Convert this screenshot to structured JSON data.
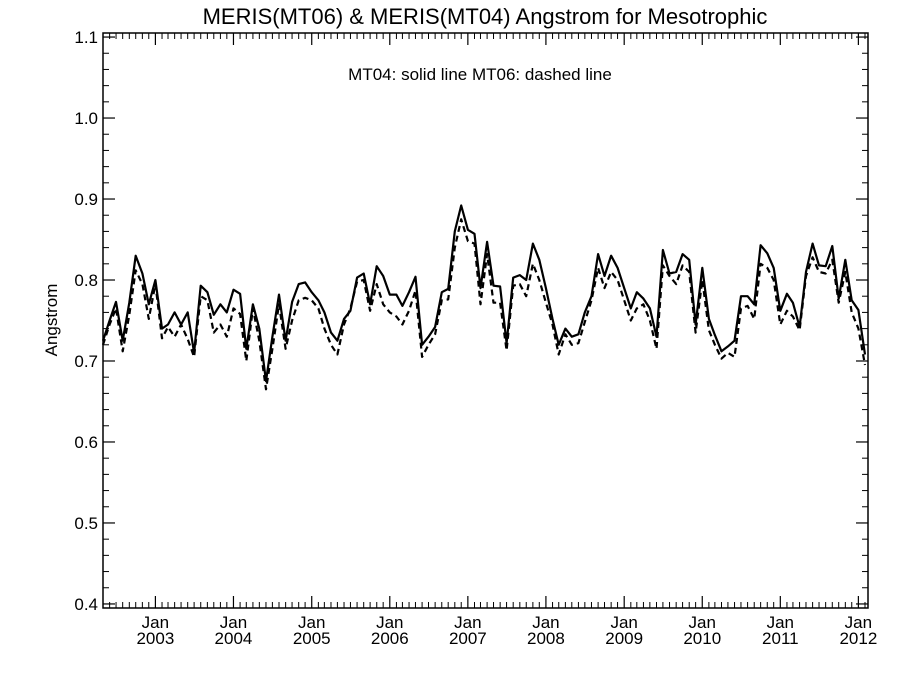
{
  "chart_data": {
    "type": "line",
    "title": "MERIS(MT06) & MERIS(MT04)  Angstrom for Mesotrophic",
    "annotation": "MT04: solid line   MT06: dashed line",
    "ylabel": "Angstrom",
    "xlabel": "",
    "ylim": [
      0.395,
      1.105
    ],
    "y_ticks": [
      "0.4",
      "0.5",
      "0.6",
      "0.7",
      "0.8",
      "0.9",
      "1.0",
      "1.1"
    ],
    "xlim": [
      "2002-05-01",
      "2012-02-15"
    ],
    "x_ticks": [
      {
        "month": "Jan",
        "year": "2003",
        "date": "2003-01-01"
      },
      {
        "month": "Jan",
        "year": "2004",
        "date": "2004-01-01"
      },
      {
        "month": "Jan",
        "year": "2005",
        "date": "2005-01-01"
      },
      {
        "month": "Jan",
        "year": "2006",
        "date": "2006-01-01"
      },
      {
        "month": "Jan",
        "year": "2007",
        "date": "2007-01-01"
      },
      {
        "month": "Jan",
        "year": "2008",
        "date": "2008-01-01"
      },
      {
        "month": "Jan",
        "year": "2009",
        "date": "2009-01-01"
      },
      {
        "month": "Jan",
        "year": "2010",
        "date": "2010-01-01"
      },
      {
        "month": "Jan",
        "year": "2011",
        "date": "2011-01-01"
      },
      {
        "month": "Jan",
        "year": "2012",
        "date": "2012-01-01"
      }
    ],
    "grid": false,
    "series": [
      {
        "style": "solid",
        "points": [
          [
            "2002-05-01",
            0.725
          ],
          [
            "2002-06-01",
            0.75
          ],
          [
            "2002-07-01",
            0.773
          ],
          [
            "2002-08-01",
            0.725
          ],
          [
            "2002-09-01",
            0.772
          ],
          [
            "2002-10-01",
            0.83
          ],
          [
            "2002-11-01",
            0.808
          ],
          [
            "2002-12-01",
            0.77
          ],
          [
            "2003-01-01",
            0.8
          ],
          [
            "2003-02-01",
            0.74
          ],
          [
            "2003-03-01",
            0.745
          ],
          [
            "2003-04-01",
            0.76
          ],
          [
            "2003-05-01",
            0.745
          ],
          [
            "2003-06-01",
            0.76
          ],
          [
            "2003-07-01",
            0.71
          ],
          [
            "2003-08-01",
            0.793
          ],
          [
            "2003-09-01",
            0.785
          ],
          [
            "2003-10-01",
            0.757
          ],
          [
            "2003-11-01",
            0.77
          ],
          [
            "2003-12-01",
            0.76
          ],
          [
            "2004-01-01",
            0.788
          ],
          [
            "2004-02-01",
            0.783
          ],
          [
            "2004-03-01",
            0.715
          ],
          [
            "2004-04-01",
            0.77
          ],
          [
            "2004-05-01",
            0.74
          ],
          [
            "2004-06-01",
            0.675
          ],
          [
            "2004-07-01",
            0.73
          ],
          [
            "2004-08-01",
            0.782
          ],
          [
            "2004-09-01",
            0.725
          ],
          [
            "2004-10-01",
            0.773
          ],
          [
            "2004-11-01",
            0.795
          ],
          [
            "2004-12-01",
            0.797
          ],
          [
            "2005-01-01",
            0.785
          ],
          [
            "2005-02-01",
            0.775
          ],
          [
            "2005-03-01",
            0.76
          ],
          [
            "2005-04-01",
            0.735
          ],
          [
            "2005-05-01",
            0.725
          ],
          [
            "2005-06-01",
            0.752
          ],
          [
            "2005-07-01",
            0.762
          ],
          [
            "2005-08-01",
            0.803
          ],
          [
            "2005-09-01",
            0.808
          ],
          [
            "2005-10-01",
            0.77
          ],
          [
            "2005-11-01",
            0.817
          ],
          [
            "2005-12-01",
            0.805
          ],
          [
            "2006-01-01",
            0.782
          ],
          [
            "2006-02-01",
            0.782
          ],
          [
            "2006-03-01",
            0.768
          ],
          [
            "2006-04-01",
            0.785
          ],
          [
            "2006-05-01",
            0.804
          ],
          [
            "2006-06-01",
            0.72
          ],
          [
            "2006-07-01",
            0.73
          ],
          [
            "2006-08-01",
            0.742
          ],
          [
            "2006-09-01",
            0.785
          ],
          [
            "2006-10-01",
            0.789
          ],
          [
            "2006-11-01",
            0.86
          ],
          [
            "2006-12-01",
            0.892
          ],
          [
            "2007-01-01",
            0.862
          ],
          [
            "2007-02-01",
            0.857
          ],
          [
            "2007-03-01",
            0.79
          ],
          [
            "2007-04-01",
            0.847
          ],
          [
            "2007-05-01",
            0.793
          ],
          [
            "2007-06-01",
            0.792
          ],
          [
            "2007-07-01",
            0.722
          ],
          [
            "2007-08-01",
            0.803
          ],
          [
            "2007-09-01",
            0.806
          ],
          [
            "2007-10-01",
            0.8
          ],
          [
            "2007-11-01",
            0.845
          ],
          [
            "2007-12-01",
            0.825
          ],
          [
            "2008-01-01",
            0.79
          ],
          [
            "2008-02-01",
            0.752
          ],
          [
            "2008-03-01",
            0.72
          ],
          [
            "2008-04-01",
            0.74
          ],
          [
            "2008-05-01",
            0.73
          ],
          [
            "2008-06-01",
            0.733
          ],
          [
            "2008-07-01",
            0.76
          ],
          [
            "2008-08-01",
            0.78
          ],
          [
            "2008-09-01",
            0.832
          ],
          [
            "2008-10-01",
            0.805
          ],
          [
            "2008-11-01",
            0.83
          ],
          [
            "2008-12-01",
            0.815
          ],
          [
            "2009-01-01",
            0.79
          ],
          [
            "2009-02-01",
            0.765
          ],
          [
            "2009-03-01",
            0.785
          ],
          [
            "2009-04-01",
            0.777
          ],
          [
            "2009-05-01",
            0.765
          ],
          [
            "2009-06-01",
            0.73
          ],
          [
            "2009-07-01",
            0.837
          ],
          [
            "2009-08-01",
            0.808
          ],
          [
            "2009-09-01",
            0.81
          ],
          [
            "2009-10-01",
            0.832
          ],
          [
            "2009-11-01",
            0.825
          ],
          [
            "2009-12-01",
            0.745
          ],
          [
            "2010-01-01",
            0.815
          ],
          [
            "2010-02-01",
            0.752
          ],
          [
            "2010-03-01",
            0.732
          ],
          [
            "2010-04-01",
            0.712
          ],
          [
            "2010-05-01",
            0.718
          ],
          [
            "2010-06-01",
            0.725
          ],
          [
            "2010-07-01",
            0.78
          ],
          [
            "2010-08-01",
            0.78
          ],
          [
            "2010-09-01",
            0.77
          ],
          [
            "2010-10-01",
            0.843
          ],
          [
            "2010-11-01",
            0.833
          ],
          [
            "2010-12-01",
            0.815
          ],
          [
            "2011-01-01",
            0.762
          ],
          [
            "2011-02-01",
            0.783
          ],
          [
            "2011-03-01",
            0.772
          ],
          [
            "2011-04-01",
            0.742
          ],
          [
            "2011-05-01",
            0.81
          ],
          [
            "2011-06-01",
            0.845
          ],
          [
            "2011-07-01",
            0.818
          ],
          [
            "2011-08-01",
            0.817
          ],
          [
            "2011-09-01",
            0.842
          ],
          [
            "2011-10-01",
            0.777
          ],
          [
            "2011-11-01",
            0.825
          ],
          [
            "2011-12-01",
            0.775
          ],
          [
            "2012-01-01",
            0.763
          ],
          [
            "2012-02-01",
            0.708
          ]
        ]
      },
      {
        "style": "dashed",
        "points": [
          [
            "2002-05-01",
            0.72
          ],
          [
            "2002-06-01",
            0.745
          ],
          [
            "2002-07-01",
            0.765
          ],
          [
            "2002-08-01",
            0.712
          ],
          [
            "2002-09-01",
            0.757
          ],
          [
            "2002-10-01",
            0.812
          ],
          [
            "2002-11-01",
            0.795
          ],
          [
            "2002-12-01",
            0.752
          ],
          [
            "2003-01-01",
            0.795
          ],
          [
            "2003-02-01",
            0.728
          ],
          [
            "2003-03-01",
            0.742
          ],
          [
            "2003-04-01",
            0.73
          ],
          [
            "2003-05-01",
            0.745
          ],
          [
            "2003-06-01",
            0.727
          ],
          [
            "2003-07-01",
            0.705
          ],
          [
            "2003-08-01",
            0.78
          ],
          [
            "2003-09-01",
            0.775
          ],
          [
            "2003-10-01",
            0.735
          ],
          [
            "2003-11-01",
            0.745
          ],
          [
            "2003-12-01",
            0.73
          ],
          [
            "2004-01-01",
            0.765
          ],
          [
            "2004-02-01",
            0.758
          ],
          [
            "2004-03-01",
            0.7
          ],
          [
            "2004-04-01",
            0.765
          ],
          [
            "2004-05-01",
            0.725
          ],
          [
            "2004-06-01",
            0.665
          ],
          [
            "2004-07-01",
            0.715
          ],
          [
            "2004-08-01",
            0.77
          ],
          [
            "2004-09-01",
            0.715
          ],
          [
            "2004-10-01",
            0.75
          ],
          [
            "2004-11-01",
            0.775
          ],
          [
            "2004-12-01",
            0.778
          ],
          [
            "2005-01-01",
            0.775
          ],
          [
            "2005-02-01",
            0.765
          ],
          [
            "2005-03-01",
            0.74
          ],
          [
            "2005-04-01",
            0.72
          ],
          [
            "2005-05-01",
            0.708
          ],
          [
            "2005-06-01",
            0.745
          ],
          [
            "2005-07-01",
            0.765
          ],
          [
            "2005-08-01",
            0.798
          ],
          [
            "2005-09-01",
            0.8
          ],
          [
            "2005-10-01",
            0.762
          ],
          [
            "2005-11-01",
            0.795
          ],
          [
            "2005-12-01",
            0.77
          ],
          [
            "2006-01-01",
            0.76
          ],
          [
            "2006-02-01",
            0.755
          ],
          [
            "2006-03-01",
            0.745
          ],
          [
            "2006-04-01",
            0.762
          ],
          [
            "2006-05-01",
            0.787
          ],
          [
            "2006-06-01",
            0.705
          ],
          [
            "2006-07-01",
            0.72
          ],
          [
            "2006-08-01",
            0.733
          ],
          [
            "2006-09-01",
            0.775
          ],
          [
            "2006-10-01",
            0.776
          ],
          [
            "2006-11-01",
            0.84
          ],
          [
            "2006-12-01",
            0.875
          ],
          [
            "2007-01-01",
            0.848
          ],
          [
            "2007-02-01",
            0.845
          ],
          [
            "2007-03-01",
            0.77
          ],
          [
            "2007-04-01",
            0.832
          ],
          [
            "2007-05-01",
            0.772
          ],
          [
            "2007-06-01",
            0.772
          ],
          [
            "2007-07-01",
            0.713
          ],
          [
            "2007-08-01",
            0.793
          ],
          [
            "2007-09-01",
            0.795
          ],
          [
            "2007-10-01",
            0.78
          ],
          [
            "2007-11-01",
            0.82
          ],
          [
            "2007-12-01",
            0.8
          ],
          [
            "2008-01-01",
            0.772
          ],
          [
            "2008-02-01",
            0.745
          ],
          [
            "2008-03-01",
            0.708
          ],
          [
            "2008-04-01",
            0.733
          ],
          [
            "2008-05-01",
            0.72
          ],
          [
            "2008-06-01",
            0.722
          ],
          [
            "2008-07-01",
            0.748
          ],
          [
            "2008-08-01",
            0.775
          ],
          [
            "2008-09-01",
            0.815
          ],
          [
            "2008-10-01",
            0.79
          ],
          [
            "2008-11-01",
            0.81
          ],
          [
            "2008-12-01",
            0.8
          ],
          [
            "2009-01-01",
            0.775
          ],
          [
            "2009-02-01",
            0.75
          ],
          [
            "2009-03-01",
            0.765
          ],
          [
            "2009-04-01",
            0.77
          ],
          [
            "2009-05-01",
            0.75
          ],
          [
            "2009-06-01",
            0.715
          ],
          [
            "2009-07-01",
            0.818
          ],
          [
            "2009-08-01",
            0.805
          ],
          [
            "2009-09-01",
            0.795
          ],
          [
            "2009-10-01",
            0.818
          ],
          [
            "2009-11-01",
            0.81
          ],
          [
            "2009-12-01",
            0.735
          ],
          [
            "2010-01-01",
            0.8
          ],
          [
            "2010-02-01",
            0.738
          ],
          [
            "2010-03-01",
            0.72
          ],
          [
            "2010-04-01",
            0.703
          ],
          [
            "2010-05-01",
            0.71
          ],
          [
            "2010-06-01",
            0.705
          ],
          [
            "2010-07-01",
            0.765
          ],
          [
            "2010-08-01",
            0.768
          ],
          [
            "2010-09-01",
            0.752
          ],
          [
            "2010-10-01",
            0.82
          ],
          [
            "2010-11-01",
            0.815
          ],
          [
            "2010-12-01",
            0.8
          ],
          [
            "2011-01-01",
            0.745
          ],
          [
            "2011-02-01",
            0.762
          ],
          [
            "2011-03-01",
            0.755
          ],
          [
            "2011-04-01",
            0.738
          ],
          [
            "2011-05-01",
            0.805
          ],
          [
            "2011-06-01",
            0.828
          ],
          [
            "2011-07-01",
            0.81
          ],
          [
            "2011-08-01",
            0.808
          ],
          [
            "2011-09-01",
            0.825
          ],
          [
            "2011-10-01",
            0.772
          ],
          [
            "2011-11-01",
            0.81
          ],
          [
            "2011-12-01",
            0.76
          ],
          [
            "2012-01-01",
            0.74
          ],
          [
            "2012-02-01",
            0.695
          ]
        ]
      }
    ]
  }
}
